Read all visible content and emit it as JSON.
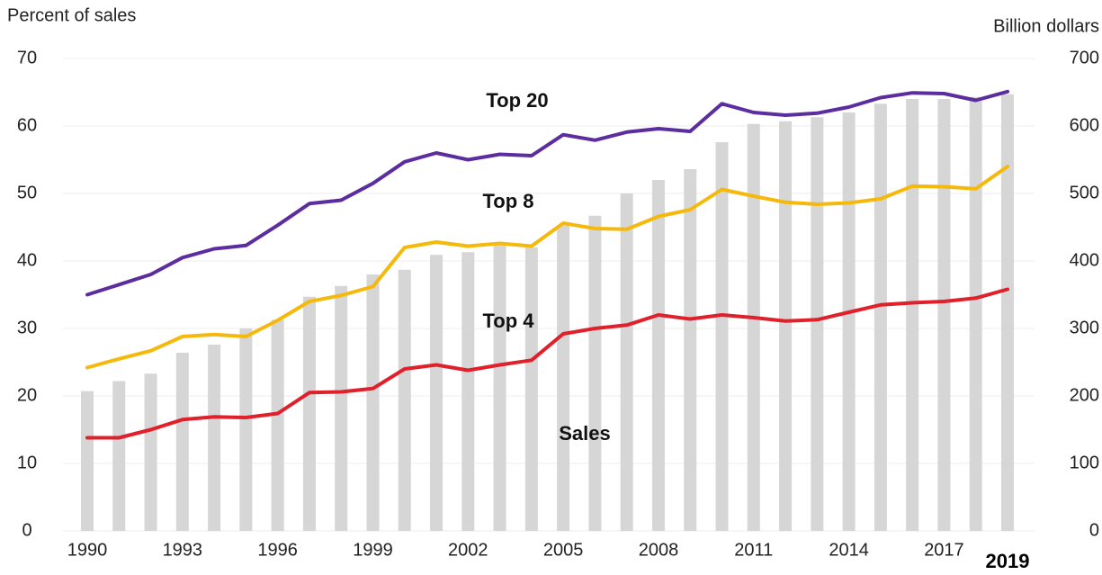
{
  "chart_data": {
    "type": "combo",
    "y_label": "Percent of sales",
    "y2_label": "Billion dollars",
    "categories": [
      "1990",
      null,
      null,
      "1993",
      null,
      null,
      "1996",
      null,
      null,
      "1999",
      null,
      null,
      "2002",
      null,
      null,
      "2005",
      null,
      null,
      "2008",
      null,
      null,
      "2011",
      null,
      null,
      "2014",
      null,
      null,
      "2017",
      null,
      "2019"
    ],
    "ylim": [
      0,
      70
    ],
    "yticks": [
      0,
      10,
      20,
      30,
      40,
      50,
      60,
      70
    ],
    "y2lim": [
      0,
      700
    ],
    "y2ticks": [
      0,
      100,
      200,
      300,
      400,
      500,
      600,
      700
    ],
    "grid": true,
    "annotations": [
      "Top 20",
      "Top 8",
      "Top 4",
      "Sales"
    ],
    "series": [
      {
        "name": "Sales",
        "type": "bar",
        "axis": "y2",
        "color": "#d6d6d6",
        "values": [
          207,
          222,
          233,
          264,
          276,
          300,
          313,
          347,
          363,
          380,
          387,
          409,
          413,
          427,
          420,
          453,
          467,
          500,
          520,
          536,
          576,
          603,
          607,
          613,
          620,
          633,
          640,
          640,
          643,
          647
        ]
      },
      {
        "name": "Top 20",
        "type": "line",
        "color": "#5b2d9e",
        "values": [
          35,
          36.5,
          38,
          40.5,
          41.8,
          42.3,
          45.3,
          48.5,
          49,
          51.5,
          54.7,
          56,
          55,
          55.8,
          55.6,
          58.7,
          57.9,
          59.1,
          59.6,
          59.2,
          63.3,
          62,
          61.6,
          61.9,
          62.8,
          64.2,
          64.9,
          64.8,
          63.8,
          65.1
        ]
      },
      {
        "name": "Top 8",
        "type": "line",
        "color": "#f5b90b",
        "values": [
          24.2,
          25.5,
          26.7,
          28.8,
          29.1,
          28.8,
          31.2,
          34,
          34.9,
          36.2,
          42,
          42.8,
          42.2,
          42.6,
          42.2,
          45.6,
          44.8,
          44.7,
          46.6,
          47.6,
          50.6,
          49.6,
          48.7,
          48.4,
          48.6,
          49.2,
          51.1,
          51,
          50.7,
          54
        ]
      },
      {
        "name": "Top 4",
        "type": "line",
        "color": "#e0202a",
        "values": [
          13.8,
          13.8,
          15,
          16.5,
          16.9,
          16.8,
          17.4,
          20.5,
          20.6,
          21.1,
          24,
          24.6,
          23.8,
          24.6,
          25.3,
          29.2,
          30,
          30.5,
          32,
          31.4,
          32,
          31.6,
          31.1,
          31.3,
          32.4,
          33.5,
          33.8,
          34,
          34.5,
          35.8
        ]
      }
    ]
  }
}
